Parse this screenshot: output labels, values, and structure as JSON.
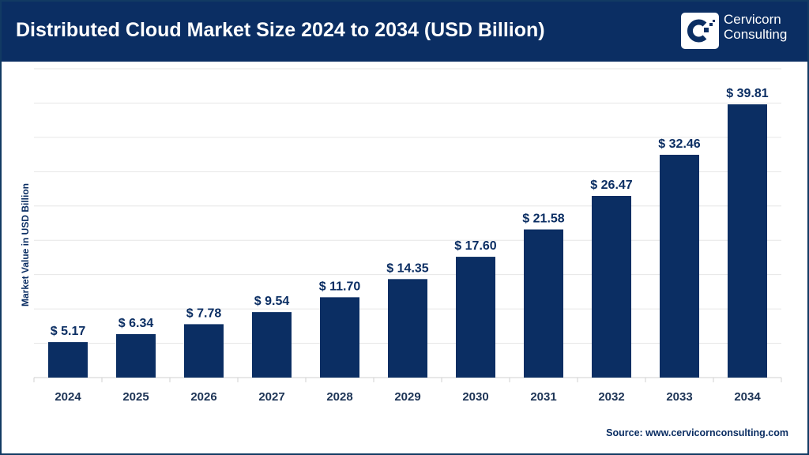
{
  "header": {
    "title": "Distributed Cloud Market Size 2024 to 2034 (USD Billion)",
    "brand_line1": "Cervicorn",
    "brand_line2": "Consulting"
  },
  "colors": {
    "header": "#0b2e63",
    "bar": "#0b2e63",
    "grid": "#e6e6e6"
  },
  "source": "Source: www.cervicornconsulting.com",
  "chart_data": {
    "type": "bar",
    "title": "Distributed Cloud Market Size 2024 to 2034 (USD Billion)",
    "xlabel": "",
    "ylabel": "Market Value in USD Billion",
    "categories": [
      "2024",
      "2025",
      "2026",
      "2027",
      "2028",
      "2029",
      "2030",
      "2031",
      "2032",
      "2033",
      "2034"
    ],
    "values": [
      5.17,
      6.34,
      7.78,
      9.54,
      11.7,
      14.35,
      17.6,
      21.58,
      26.47,
      32.46,
      39.81
    ],
    "data_labels": [
      "$ 5.17",
      "$ 6.34",
      "$ 7.78",
      "$ 9.54",
      "$ 11.70",
      "$ 14.35",
      "$ 17.60",
      "$ 21.58",
      "$ 26.47",
      "$ 32.46",
      "$ 39.81"
    ],
    "ylim": [
      0,
      45
    ],
    "ytick_step": 5,
    "ytick_labels_shown": false,
    "grid": true,
    "legend": "none"
  }
}
